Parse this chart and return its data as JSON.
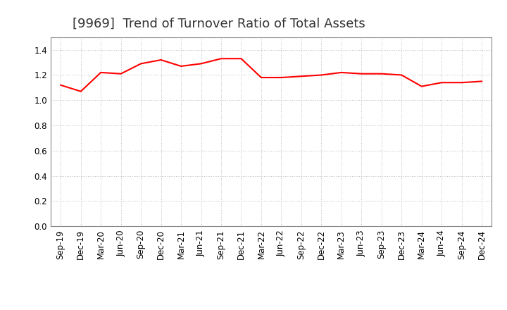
{
  "title": "[9969]  Trend of Turnover Ratio of Total Assets",
  "x_labels": [
    "Sep-19",
    "Dec-19",
    "Mar-20",
    "Jun-20",
    "Sep-20",
    "Dec-20",
    "Mar-21",
    "Jun-21",
    "Sep-21",
    "Dec-21",
    "Mar-22",
    "Jun-22",
    "Sep-22",
    "Dec-22",
    "Mar-23",
    "Jun-23",
    "Sep-23",
    "Dec-23",
    "Mar-24",
    "Jun-24",
    "Sep-24",
    "Dec-24"
  ],
  "y_values": [
    1.12,
    1.07,
    1.22,
    1.21,
    1.29,
    1.32,
    1.27,
    1.29,
    1.33,
    1.33,
    1.18,
    1.18,
    1.19,
    1.2,
    1.22,
    1.21,
    1.21,
    1.2,
    1.11,
    1.14,
    1.14,
    1.15
  ],
  "line_color": "#ff0000",
  "line_width": 1.5,
  "ylim": [
    0.0,
    1.5
  ],
  "yticks": [
    0.0,
    0.2,
    0.4,
    0.6,
    0.8,
    1.0,
    1.2,
    1.4
  ],
  "background_color": "#ffffff",
  "plot_bg_color": "#ffffff",
  "grid_color": "#aaaaaa",
  "title_fontsize": 13,
  "tick_fontsize": 8.5
}
